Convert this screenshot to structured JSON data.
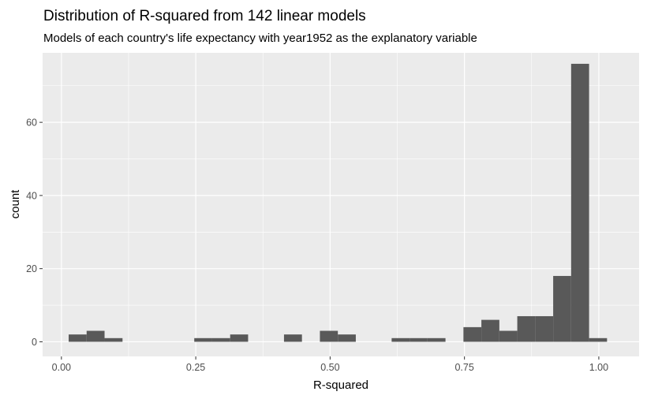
{
  "chart_data": {
    "type": "bar",
    "title": "Distribution of R-squared from 142 linear models",
    "subtitle": "Models of each country's life expectancy with year1952 as the explanatory variable",
    "xlabel": "R-squared",
    "ylabel": "count",
    "xlim": [
      -0.035,
      1.075
    ],
    "ylim": [
      -4,
      79
    ],
    "x_ticks": [
      {
        "value": 0.0,
        "label": "0.00"
      },
      {
        "value": 0.25,
        "label": "0.25"
      },
      {
        "value": 0.5,
        "label": "0.50"
      },
      {
        "value": 0.75,
        "label": "0.75"
      },
      {
        "value": 1.0,
        "label": "1.00"
      }
    ],
    "y_ticks": [
      {
        "value": 0,
        "label": "0"
      },
      {
        "value": 20,
        "label": "20"
      },
      {
        "value": 40,
        "label": "40"
      },
      {
        "value": 60,
        "label": "60"
      }
    ],
    "grid": true,
    "bin_width": 0.0334,
    "bins": [
      {
        "x0": 0.0135,
        "x1": 0.0469,
        "count": 2
      },
      {
        "x0": 0.0469,
        "x1": 0.0803,
        "count": 3
      },
      {
        "x0": 0.0803,
        "x1": 0.1137,
        "count": 1
      },
      {
        "x0": 0.2472,
        "x1": 0.2806,
        "count": 1
      },
      {
        "x0": 0.2806,
        "x1": 0.314,
        "count": 1
      },
      {
        "x0": 0.314,
        "x1": 0.3474,
        "count": 2
      },
      {
        "x0": 0.4142,
        "x1": 0.4476,
        "count": 2
      },
      {
        "x0": 0.481,
        "x1": 0.5144,
        "count": 3
      },
      {
        "x0": 0.5144,
        "x1": 0.5478,
        "count": 2
      },
      {
        "x0": 0.6145,
        "x1": 0.6479,
        "count": 1
      },
      {
        "x0": 0.6479,
        "x1": 0.6813,
        "count": 1
      },
      {
        "x0": 0.6813,
        "x1": 0.7147,
        "count": 1
      },
      {
        "x0": 0.7481,
        "x1": 0.7815,
        "count": 4
      },
      {
        "x0": 0.7815,
        "x1": 0.8149,
        "count": 6
      },
      {
        "x0": 0.8149,
        "x1": 0.8483,
        "count": 3
      },
      {
        "x0": 0.8483,
        "x1": 0.8817,
        "count": 7
      },
      {
        "x0": 0.8817,
        "x1": 0.9151,
        "count": 7
      },
      {
        "x0": 0.9151,
        "x1": 0.9485,
        "count": 18
      },
      {
        "x0": 0.9485,
        "x1": 0.9819,
        "count": 76
      },
      {
        "x0": 0.9819,
        "x1": 1.0153,
        "count": 1
      }
    ],
    "colors": {
      "panel": "#ebebeb",
      "grid_major": "#ffffff",
      "bar": "#595959",
      "tick_text": "#4d4d4d",
      "tick_mark": "#333333"
    }
  }
}
